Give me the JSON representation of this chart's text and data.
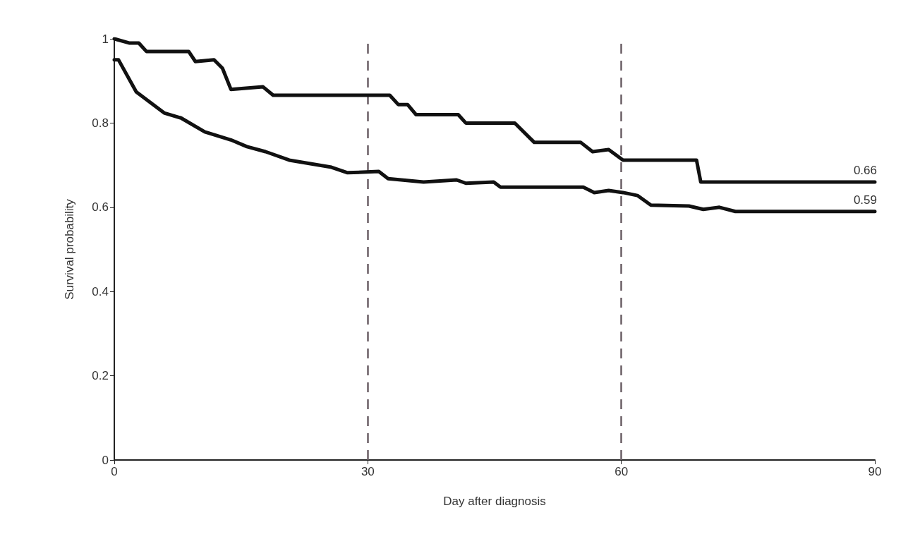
{
  "chart_data": {
    "type": "line",
    "xlabel": "Day after diagnosis",
    "ylabel": "Survival probability",
    "xlim": [
      0,
      90
    ],
    "xticks": [
      0,
      30,
      60,
      90
    ],
    "ylim": [
      0,
      1
    ],
    "yticks": [
      0,
      0.2,
      0.4,
      0.6,
      0.8,
      1
    ],
    "grid": false,
    "marker": "none",
    "line_style": "solid",
    "series": [
      {
        "color": "#111111",
        "x": [
          0,
          1.75,
          2.9,
          3.8,
          8.8,
          9.6,
          11.8,
          12.8,
          13.8,
          17.6,
          18.8,
          32.6,
          33.6,
          34.7,
          35.7,
          40.7,
          41.6,
          47.4,
          49.7,
          55.2,
          56.6,
          58.5,
          60.2,
          68.9,
          69.4,
          90
        ],
        "values": [
          1.0,
          0.99,
          0.99,
          0.97,
          0.97,
          0.946,
          0.95,
          0.93,
          0.88,
          0.886,
          0.866,
          0.866,
          0.844,
          0.844,
          0.82,
          0.82,
          0.8,
          0.8,
          0.754,
          0.754,
          0.732,
          0.737,
          0.712,
          0.712,
          0.66,
          0.66
        ]
      },
      {
        "color": "#111111",
        "x": [
          0,
          0.5,
          2.6,
          5.9,
          7.9,
          10.7,
          13.8,
          15.7,
          17.9,
          20.7,
          25.7,
          27.6,
          31.3,
          32.4,
          36.6,
          40.5,
          41.6,
          44.9,
          45.7,
          55.5,
          56.8,
          58.5,
          60.2,
          61.9,
          63.5,
          68,
          69.7,
          71.6,
          73.5,
          90
        ],
        "values": [
          0.95,
          0.95,
          0.874,
          0.824,
          0.812,
          0.779,
          0.76,
          0.744,
          0.732,
          0.712,
          0.695,
          0.682,
          0.685,
          0.668,
          0.66,
          0.665,
          0.657,
          0.66,
          0.648,
          0.648,
          0.635,
          0.64,
          0.635,
          0.628,
          0.605,
          0.603,
          0.595,
          0.6,
          0.59,
          0.59
        ]
      }
    ],
    "ref_lines": [
      {
        "axis": "x",
        "value": 30,
        "color": "#6b5f66",
        "line_style": "dashed"
      },
      {
        "axis": "x",
        "value": 60,
        "color": "#6b5f66",
        "line_style": "dashed"
      }
    ],
    "annotations": [
      {
        "text": "0.66",
        "x": 90,
        "y": 0.66
      },
      {
        "text": "0.59",
        "x": 90,
        "y": 0.59
      }
    ]
  }
}
